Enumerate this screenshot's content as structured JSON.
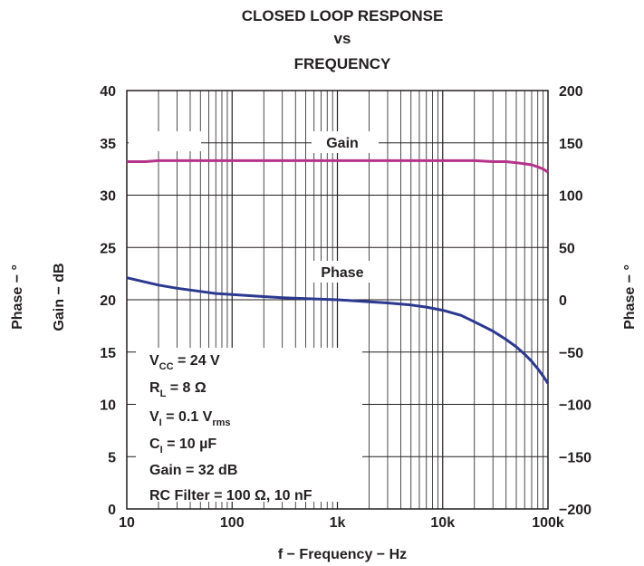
{
  "chart_data": {
    "type": "line",
    "title": [
      "CLOSED LOOP RESPONSE",
      "vs",
      "FREQUENCY"
    ],
    "xlabel": "f − Frequency − Hz",
    "ylabel_left": [
      "Phase − °",
      "Gain − dB"
    ],
    "ylabel_right": "Phase − °",
    "x_scale": "log",
    "xlim": [
      10,
      100000
    ],
    "x_ticks": [
      {
        "value": 10,
        "label": "10"
      },
      {
        "value": 100,
        "label": "100"
      },
      {
        "value": 1000,
        "label": "1k"
      },
      {
        "value": 10000,
        "label": "10k"
      },
      {
        "value": 100000,
        "label": "100k"
      }
    ],
    "y_left": {
      "lim": [
        0,
        40
      ],
      "ticks": [
        "0",
        "5",
        "10",
        "15",
        "20",
        "25",
        "30",
        "35",
        "40"
      ]
    },
    "y_right": {
      "lim": [
        -200,
        200
      ],
      "ticks": [
        "−200",
        "−150",
        "−100",
        "−50",
        "0",
        "50",
        "100",
        "150",
        "200"
      ]
    },
    "grid": true,
    "series": [
      {
        "name": "Gain",
        "axis": "left",
        "color": "#b5338a",
        "x": [
          10,
          15,
          20,
          50,
          100,
          300,
          1000,
          3000,
          10000,
          20000,
          30000,
          40000,
          50000,
          60000,
          70000,
          80000,
          90000,
          100000
        ],
        "y": [
          33.2,
          33.2,
          33.3,
          33.3,
          33.3,
          33.3,
          33.3,
          33.3,
          33.3,
          33.3,
          33.2,
          33.2,
          33.1,
          33.0,
          32.9,
          32.7,
          32.5,
          32.2
        ]
      },
      {
        "name": "Phase",
        "axis": "right",
        "color": "#2b3990",
        "x": [
          10,
          15,
          20,
          30,
          50,
          70,
          100,
          200,
          300,
          500,
          1000,
          2000,
          3000,
          5000,
          7000,
          10000,
          15000,
          20000,
          30000,
          40000,
          50000,
          60000,
          70000,
          80000,
          90000,
          100000
        ],
        "y": [
          21,
          17,
          14,
          11,
          8,
          6,
          5,
          3,
          2,
          1,
          0,
          -2,
          -3,
          -5,
          -7,
          -10,
          -15,
          -21,
          -30,
          -38,
          -45,
          -52,
          -59,
          -66,
          -73,
          -80
        ]
      }
    ],
    "annotations": {
      "gain_label": "Gain",
      "phase_label": "Phase",
      "conditions": [
        {
          "main": "V",
          "sub": "CC",
          "rest": " = 24 V"
        },
        {
          "main": "R",
          "sub": "L",
          "rest": " = 8 Ω"
        },
        {
          "main": "V",
          "sub": "I",
          "rest": " = 0.1 V",
          "sub2": "rms"
        },
        {
          "main": "C",
          "sub": "I",
          "rest": " = 10 µF"
        },
        {
          "main": "Gain = 32 dB",
          "sub": "",
          "rest": ""
        },
        {
          "main": "RC Filter = 100 Ω, 10 nF",
          "sub": "",
          "rest": ""
        }
      ]
    }
  }
}
